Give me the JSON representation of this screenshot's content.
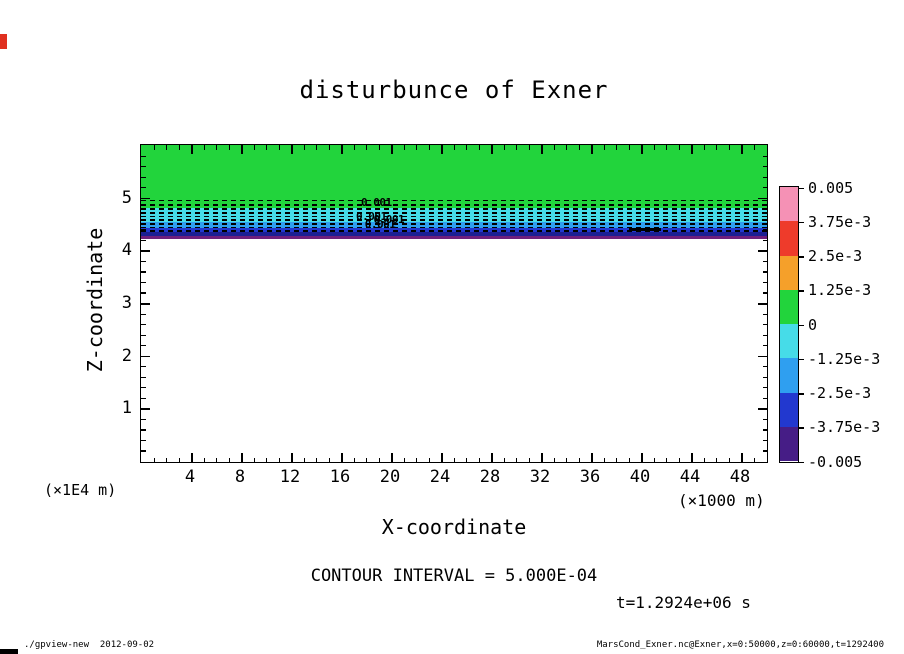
{
  "chart_data": {
    "type": "heatmap",
    "title": "disturbunce of Exner",
    "xlabel": "X-coordinate",
    "xunit": "(×1000 m)",
    "ylabel": "Z-coordinate",
    "yunit": "(×1E4 m)",
    "xlim": [
      0,
      50
    ],
    "ylim": [
      0,
      6
    ],
    "x_ticks": [
      4,
      8,
      12,
      16,
      20,
      24,
      28,
      32,
      36,
      40,
      44,
      48
    ],
    "y_ticks": [
      1,
      2,
      3,
      4,
      5
    ],
    "contour_interval_text": "CONTOUR INTERVAL = 5.000E-04",
    "time_label": "t=1.2924e+06 s",
    "colorbar": {
      "labels": [
        "0.005",
        "3.75e-3",
        "2.5e-3",
        "1.25e-3",
        "0",
        "-1.25e-3",
        "-2.5e-3",
        "-3.75e-3",
        "-0.005"
      ],
      "colors": [
        "#f591b5",
        "#ee3b2b",
        "#f5a02a",
        "#22d43c",
        "#46dce8",
        "#2f9ff0",
        "#2238cf",
        "#461d86"
      ]
    },
    "bands": [
      {
        "z_top": 6.0,
        "z_bottom": 4.8,
        "color": "#22d43c"
      },
      {
        "z_top": 4.8,
        "z_bottom": 4.53,
        "color": "#46dce8"
      },
      {
        "z_top": 4.53,
        "z_bottom": 4.42,
        "color": "#2f9ff0"
      },
      {
        "z_top": 4.42,
        "z_bottom": 4.34,
        "color": "#2238cf"
      },
      {
        "z_top": 4.34,
        "z_bottom": 4.27,
        "color": "#1b1f93"
      },
      {
        "z_top": 4.27,
        "z_bottom": 4.21,
        "color": "#6e1f7d"
      },
      {
        "z_top": 4.21,
        "z_bottom": 0.0,
        "color": "#ffffff"
      }
    ],
    "contour_line_zs": [
      4.96,
      4.88,
      4.8,
      4.73,
      4.66,
      4.59,
      4.52,
      4.45,
      4.38
    ],
    "solid_segments": [
      {
        "z": 4.42,
        "x0": 39.0,
        "x1": 41.6
      }
    ],
    "contour_labels": [
      {
        "text": "0.001",
        "x": 17.6,
        "z": 4.92
      },
      {
        "text": "0.001",
        "x": 17.2,
        "z": 4.66
      },
      {
        "text": "0.001",
        "x": 18.6,
        "z": 4.6
      },
      {
        "text": "0.001",
        "x": 17.9,
        "z": 4.5
      }
    ]
  },
  "footer": {
    "left": "./gpview-new  2012-09-02",
    "right": "MarsCond_Exner.nc@Exner,x=0:50000,z=0:60000,t=1292400"
  },
  "artifacts": {
    "left_red_mark_color": "#e03020",
    "bottom_left_black_mark_color": "#000000"
  }
}
